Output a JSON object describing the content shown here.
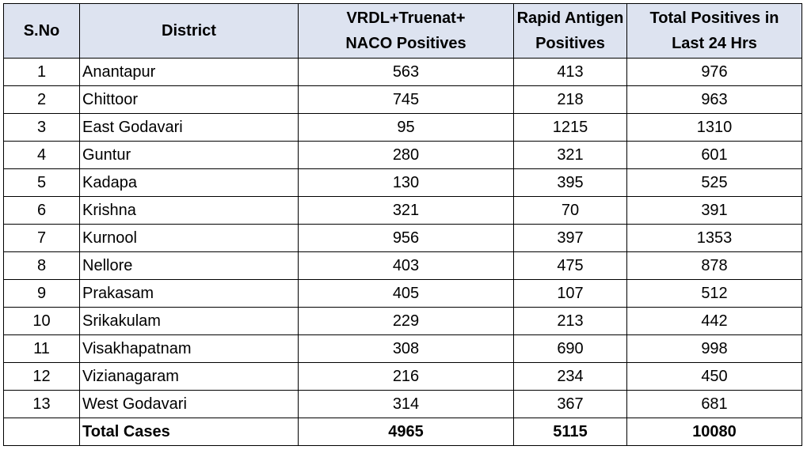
{
  "table": {
    "headers": [
      [
        "S.No"
      ],
      [
        "District"
      ],
      [
        "VRDL+Truenat+",
        "NACO Positives"
      ],
      [
        "Rapid Antigen",
        "Positives"
      ],
      [
        "Total Positives in",
        "Last 24 Hrs"
      ]
    ],
    "rows": [
      [
        "1",
        "Anantapur",
        "563",
        "413",
        "976"
      ],
      [
        "2",
        "Chittoor",
        "745",
        "218",
        "963"
      ],
      [
        "3",
        "East Godavari",
        "95",
        "1215",
        "1310"
      ],
      [
        "4",
        "Guntur",
        "280",
        "321",
        "601"
      ],
      [
        "5",
        "Kadapa",
        "130",
        "395",
        "525"
      ],
      [
        "6",
        "Krishna",
        "321",
        "70",
        "391"
      ],
      [
        "7",
        "Kurnool",
        "956",
        "397",
        "1353"
      ],
      [
        "8",
        "Nellore",
        "403",
        "475",
        "878"
      ],
      [
        "9",
        "Prakasam",
        "405",
        "107",
        "512"
      ],
      [
        "10",
        "Srikakulam",
        "229",
        "213",
        "442"
      ],
      [
        "11",
        "Visakhapatnam",
        "308",
        "690",
        "998"
      ],
      [
        "12",
        "Vizianagaram",
        "216",
        "234",
        "450"
      ],
      [
        "13",
        "West Godavari",
        "314",
        "367",
        "681"
      ]
    ],
    "total": [
      "",
      "Total Cases",
      "4965",
      "5115",
      "10080"
    ],
    "header_bg": "#dde3f0"
  }
}
